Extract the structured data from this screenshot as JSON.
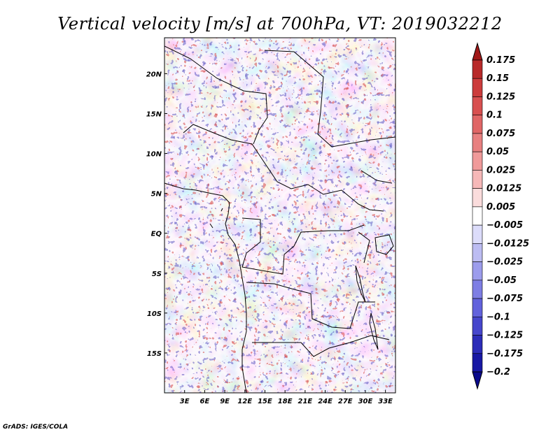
{
  "chart_data": {
    "type": "heatmap",
    "title": "Vertical velocity [m/s] at 700hPa, VT: 2019032212",
    "variable": "Vertical velocity",
    "units": "m/s",
    "level": "700hPa",
    "valid_time": "2019032212",
    "x_ticks": [
      "3E",
      "6E",
      "9E",
      "12E",
      "15E",
      "18E",
      "21E",
      "24E",
      "27E",
      "30E",
      "33E"
    ],
    "x_tick_values": [
      3,
      6,
      9,
      12,
      15,
      18,
      21,
      24,
      27,
      30,
      33
    ],
    "y_ticks": [
      "20N",
      "15N",
      "10N",
      "5N",
      "EQ",
      "5S",
      "10S",
      "15S"
    ],
    "y_tick_values": [
      20,
      15,
      10,
      5,
      0,
      -5,
      -10,
      -15
    ],
    "xlim": [
      0,
      34.5
    ],
    "ylim": [
      -20,
      24.5
    ],
    "colorbar": {
      "levels": [
        0.175,
        0.15,
        0.125,
        0.1,
        0.075,
        0.05,
        0.025,
        0.0125,
        0.005,
        -0.005,
        -0.0125,
        -0.025,
        -0.05,
        -0.075,
        -0.1,
        -0.125,
        -0.175,
        -0.2
      ],
      "labels": [
        "0.175",
        "0.15",
        "0.125",
        "0.1",
        "0.075",
        "0.05",
        "0.025",
        "0.0125",
        "0.005",
        "−0.005",
        "−0.0125",
        "−0.025",
        "−0.05",
        "−0.075",
        "−0.1",
        "−0.125",
        "−0.175",
        "−0.2"
      ],
      "colors": [
        "#a01818",
        "#b82a2a",
        "#cc3c3c",
        "#d85050",
        "#e06666",
        "#e88080",
        "#f09a9a",
        "#f6b8b8",
        "#fadcdc",
        "#ffffff",
        "#dcdcfa",
        "#bcbcf2",
        "#9c9cec",
        "#7e7ee4",
        "#6262dc",
        "#4646cc",
        "#2c2cb8",
        "#1818a4",
        "#0a0a8c"
      ]
    }
  },
  "credit": "GrADS: IGES/COLA"
}
